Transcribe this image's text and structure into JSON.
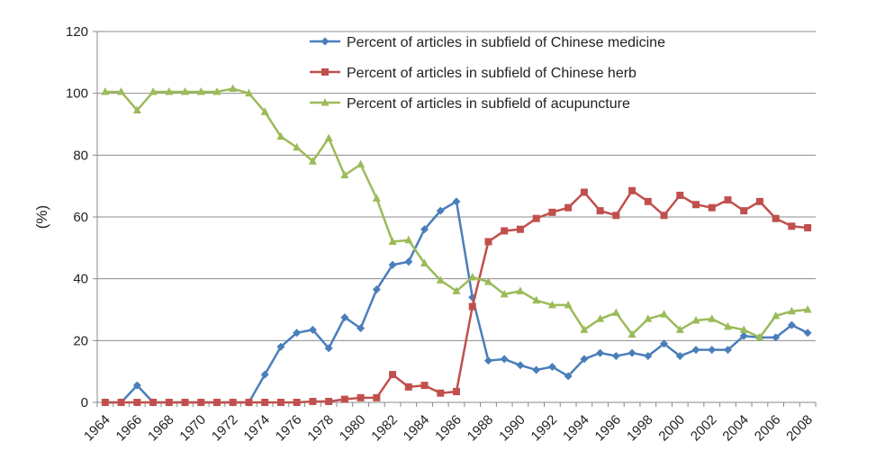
{
  "chart_data": {
    "type": "line",
    "title": "",
    "xlabel": "",
    "ylabel": "(%)",
    "ylim": [
      0,
      120
    ],
    "yticks": [
      0,
      20,
      40,
      60,
      80,
      100,
      120
    ],
    "xticks": [
      "1964",
      "1966",
      "1968",
      "1970",
      "1972",
      "1974",
      "1976",
      "1978",
      "1980",
      "1982",
      "1984",
      "1986",
      "1988",
      "1990",
      "1992",
      "1994",
      "1996",
      "1998",
      "2000",
      "2002",
      "2004",
      "2006",
      "2008"
    ],
    "x": [
      1964,
      1965,
      1966,
      1967,
      1968,
      1969,
      1970,
      1971,
      1972,
      1973,
      1974,
      1975,
      1976,
      1977,
      1978,
      1979,
      1980,
      1981,
      1982,
      1983,
      1984,
      1985,
      1986,
      1987,
      1988,
      1989,
      1990,
      1991,
      1992,
      1993,
      1994,
      1995,
      1996,
      1997,
      1998,
      1999,
      2000,
      2001,
      2002,
      2003,
      2004,
      2005,
      2006,
      2007,
      2008
    ],
    "grid": "horizontal",
    "legend": "top-right",
    "series": [
      {
        "name": "Percent of articles in subfield of Chinese medicine",
        "color": "#4a7ebb",
        "marker": "diamond",
        "values": [
          0,
          0,
          5.5,
          0,
          0,
          0,
          0,
          0,
          0,
          0,
          9,
          18,
          22.5,
          23.5,
          17.5,
          27.5,
          24,
          36.5,
          44.5,
          45.5,
          56,
          62,
          65,
          34,
          13.5,
          14,
          12,
          10.5,
          11.5,
          8.5,
          14,
          16,
          15,
          16,
          15,
          19,
          15,
          17,
          17,
          17,
          21.5,
          21,
          21,
          25,
          22.5
        ]
      },
      {
        "name": "Percent of articles in subfield of Chinese herb",
        "color": "#c0504d",
        "marker": "square",
        "values": [
          0,
          0,
          0,
          0,
          0,
          0,
          0,
          0,
          0,
          0,
          0,
          0,
          0,
          0.3,
          0.3,
          1,
          1.5,
          1.5,
          9,
          5,
          5.5,
          3,
          3.5,
          31,
          52,
          55.5,
          56,
          59.5,
          61.5,
          63,
          68,
          62,
          60.5,
          68.5,
          65,
          60.5,
          67,
          64,
          63,
          65.5,
          62,
          65,
          59.5,
          57,
          56.5
        ]
      },
      {
        "name": "Percent of articles in subfield of acupuncture",
        "color": "#9bbb59",
        "marker": "triangle",
        "values": [
          100.5,
          100.5,
          94.5,
          100.5,
          100.5,
          100.5,
          100.5,
          100.5,
          101.5,
          100,
          94,
          86,
          82.5,
          78,
          85.5,
          73.5,
          77,
          66,
          52,
          52.5,
          45,
          39.5,
          36,
          40.5,
          39,
          35,
          36,
          33,
          31.5,
          31.5,
          23.5,
          27,
          29,
          22,
          27,
          28.5,
          23.5,
          26.5,
          27,
          24.5,
          23.5,
          21,
          28,
          29.5,
          30
        ]
      }
    ]
  }
}
